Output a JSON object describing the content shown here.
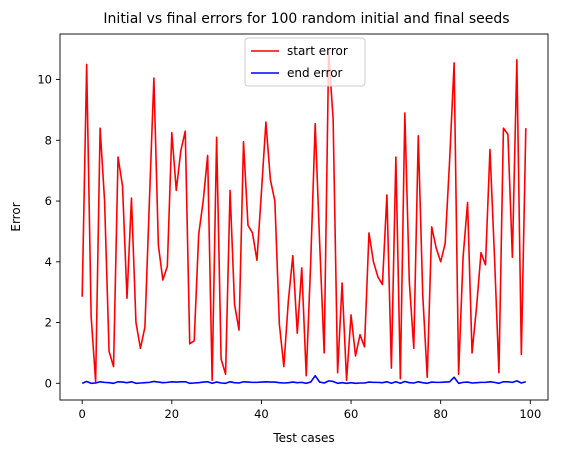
{
  "chart_data": {
    "type": "line",
    "title": "Initial vs final errors for 100 random initial and final seeds",
    "xlabel": "Test cases",
    "ylabel": "Error",
    "xlim": [
      -4.95,
      103.95
    ],
    "ylim": [
      -0.55,
      11.5
    ],
    "xticks": [
      0,
      20,
      40,
      60,
      80,
      100
    ],
    "yticks": [
      0,
      2,
      4,
      6,
      8,
      10
    ],
    "grid": false,
    "legend_position": "top-center",
    "x": [
      0,
      1,
      2,
      3,
      4,
      5,
      6,
      7,
      8,
      9,
      10,
      11,
      12,
      13,
      14,
      15,
      16,
      17,
      18,
      19,
      20,
      21,
      22,
      23,
      24,
      25,
      26,
      27,
      28,
      29,
      30,
      31,
      32,
      33,
      34,
      35,
      36,
      37,
      38,
      39,
      40,
      41,
      42,
      43,
      44,
      45,
      46,
      47,
      48,
      49,
      50,
      51,
      52,
      53,
      54,
      55,
      56,
      57,
      58,
      59,
      60,
      61,
      62,
      63,
      64,
      65,
      66,
      67,
      68,
      69,
      70,
      71,
      72,
      73,
      74,
      75,
      76,
      77,
      78,
      79,
      80,
      81,
      82,
      83,
      84,
      85,
      86,
      87,
      88,
      89,
      90,
      91,
      92,
      93,
      94,
      95,
      96,
      97,
      98,
      99
    ],
    "series": [
      {
        "name": "start error",
        "color": "#ff0000",
        "values": [
          2.85,
          10.5,
          2.2,
          0.05,
          8.4,
          6.0,
          1.05,
          0.55,
          7.45,
          6.5,
          2.8,
          6.1,
          2.0,
          1.15,
          1.85,
          6.0,
          10.05,
          4.55,
          3.4,
          3.85,
          8.25,
          6.35,
          7.65,
          8.3,
          1.3,
          1.4,
          4.9,
          6.0,
          7.5,
          0.1,
          8.1,
          0.8,
          0.3,
          6.35,
          2.6,
          1.75,
          7.95,
          5.2,
          4.95,
          4.05,
          6.3,
          8.6,
          6.7,
          6.0,
          1.95,
          0.55,
          2.7,
          4.2,
          1.65,
          3.8,
          0.25,
          4.0,
          8.55,
          4.6,
          1.0,
          10.9,
          8.7,
          0.35,
          3.3,
          0.1,
          2.25,
          0.9,
          1.6,
          1.2,
          4.95,
          4.0,
          3.5,
          3.25,
          6.2,
          0.5,
          7.45,
          0.15,
          8.9,
          3.35,
          1.15,
          8.15,
          2.9,
          0.2,
          5.15,
          4.45,
          4.0,
          4.6,
          7.35,
          10.55,
          0.3,
          4.15,
          5.95,
          1.0,
          2.5,
          4.3,
          3.9,
          7.7,
          4.2,
          0.35,
          8.4,
          8.2,
          4.15,
          10.65,
          0.95,
          8.4
        ]
      },
      {
        "name": "end error",
        "color": "#0000ff",
        "values": [
          0.0,
          0.06,
          0.0,
          0.01,
          0.05,
          0.03,
          0.02,
          0.0,
          0.05,
          0.04,
          0.02,
          0.05,
          0.0,
          0.01,
          0.02,
          0.03,
          0.06,
          0.04,
          0.02,
          0.03,
          0.05,
          0.04,
          0.05,
          0.05,
          0.0,
          0.01,
          0.02,
          0.04,
          0.05,
          0.0,
          0.04,
          0.01,
          0.0,
          0.05,
          0.02,
          0.01,
          0.05,
          0.04,
          0.03,
          0.03,
          0.04,
          0.05,
          0.04,
          0.04,
          0.02,
          0.01,
          0.02,
          0.04,
          0.02,
          0.03,
          0.0,
          0.04,
          0.25,
          0.04,
          0.01,
          0.08,
          0.06,
          0.0,
          0.02,
          0.0,
          0.02,
          0.0,
          0.01,
          0.01,
          0.04,
          0.03,
          0.03,
          0.02,
          0.05,
          0.0,
          0.05,
          0.0,
          0.06,
          0.02,
          0.01,
          0.05,
          0.02,
          0.0,
          0.04,
          0.03,
          0.03,
          0.04,
          0.05,
          0.2,
          0.0,
          0.03,
          0.04,
          0.01,
          0.02,
          0.03,
          0.03,
          0.05,
          0.03,
          0.0,
          0.05,
          0.05,
          0.03,
          0.08,
          0.01,
          0.05
        ]
      }
    ]
  }
}
